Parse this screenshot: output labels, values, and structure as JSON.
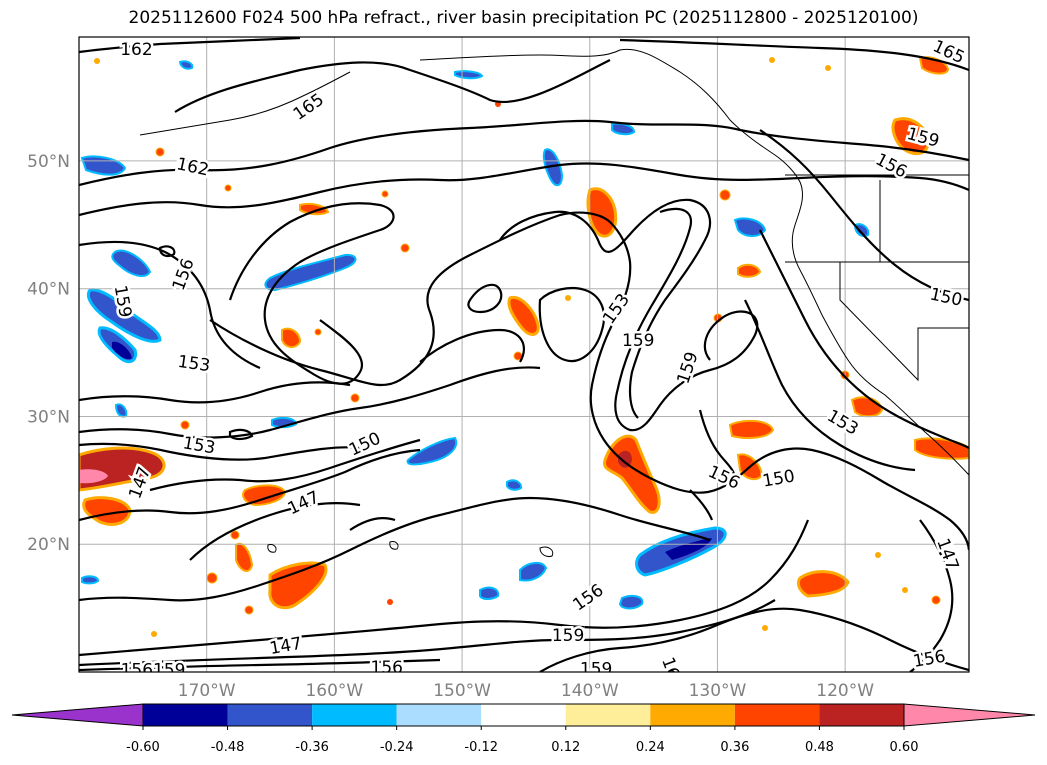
{
  "title": "2025112600 F024 500 hPa refract., river basin precipitation PC (2025112800 - 2025120100)",
  "map": {
    "lat_labels": [
      {
        "lat": 50,
        "text": "50°N"
      },
      {
        "lat": 40,
        "text": "40°N"
      },
      {
        "lat": 30,
        "text": "30°N"
      },
      {
        "lat": 20,
        "text": "20°N"
      }
    ],
    "lon_labels": [
      {
        "lon": -170,
        "text": "170°W"
      },
      {
        "lon": -160,
        "text": "160°W"
      },
      {
        "lon": -150,
        "text": "150°W"
      },
      {
        "lon": -140,
        "text": "140°W"
      },
      {
        "lon": -130,
        "text": "130°W"
      },
      {
        "lon": -120,
        "text": "120°W"
      }
    ],
    "extent": {
      "lon_min": -180,
      "lon_max": -110.3,
      "lat_min": 10,
      "lat_max": 59.7
    },
    "grid_lons": [
      -170,
      -160,
      -150,
      -140,
      -130,
      -120
    ],
    "grid_lats": [
      20,
      30,
      40,
      50
    ],
    "contour_labels": [
      {
        "text": "162",
        "lon": -175.5,
        "lat": 58.7,
        "rot": 0
      },
      {
        "text": "165",
        "lon": -162.0,
        "lat": 54.2,
        "rot": -35
      },
      {
        "text": "165",
        "lon": -111.9,
        "lat": 58.5,
        "rot": 25
      },
      {
        "text": "162",
        "lon": -171.1,
        "lat": 49.5,
        "rot": 12
      },
      {
        "text": "159",
        "lon": -113.9,
        "lat": 51.8,
        "rot": 15
      },
      {
        "text": "156",
        "lon": -116.4,
        "lat": 49.6,
        "rot": 28
      },
      {
        "text": "156",
        "lon": -171.8,
        "lat": 41.1,
        "rot": -70
      },
      {
        "text": "159",
        "lon": -176.6,
        "lat": 39.0,
        "rot": 80
      },
      {
        "text": "153",
        "lon": -171.0,
        "lat": 34.1,
        "rot": 8
      },
      {
        "text": "150",
        "lon": -112.1,
        "lat": 39.3,
        "rot": 12
      },
      {
        "text": "153",
        "lon": -137.9,
        "lat": 38.4,
        "rot": -55
      },
      {
        "text": "159",
        "lon": -136.2,
        "lat": 35.9,
        "rot": 0
      },
      {
        "text": "159",
        "lon": -132.3,
        "lat": 33.8,
        "rot": -72
      },
      {
        "text": "153",
        "lon": -120.2,
        "lat": 29.5,
        "rot": 30
      },
      {
        "text": "153",
        "lon": -170.6,
        "lat": 27.7,
        "rot": 10
      },
      {
        "text": "150",
        "lon": -157.6,
        "lat": 27.8,
        "rot": -25
      },
      {
        "text": "147",
        "lon": -175.2,
        "lat": 24.8,
        "rot": -70
      },
      {
        "text": "147",
        "lon": -162.4,
        "lat": 23.2,
        "rot": -25
      },
      {
        "text": "156",
        "lon": -129.5,
        "lat": 25.2,
        "rot": 25
      },
      {
        "text": "150",
        "lon": -125.2,
        "lat": 25.1,
        "rot": -10
      },
      {
        "text": "156",
        "lon": -140.1,
        "lat": 15.8,
        "rot": -35
      },
      {
        "text": "147",
        "lon": -112.0,
        "lat": 19.2,
        "rot": 70
      },
      {
        "text": "159",
        "lon": -141.7,
        "lat": 12.8,
        "rot": 0
      },
      {
        "text": "147",
        "lon": -163.8,
        "lat": 12.0,
        "rot": -10
      },
      {
        "text": "156",
        "lon": -155.9,
        "lat": 10.3,
        "rot": 0
      },
      {
        "text": "159",
        "lon": -139.5,
        "lat": 10.2,
        "rot": 0
      },
      {
        "text": "156",
        "lon": -113.4,
        "lat": 11.0,
        "rot": -10
      },
      {
        "text": "16",
        "lon": -133.7,
        "lat": 10.3,
        "rot": 70
      },
      {
        "text": "156159",
        "lon": -174.2,
        "lat": 10.1,
        "rot": 0
      }
    ]
  },
  "colorbar": {
    "ticks": [
      "-0.60",
      "-0.48",
      "-0.36",
      "-0.24",
      "-0.12",
      "0.12",
      "0.24",
      "0.36",
      "0.48",
      "0.60"
    ],
    "levels": [
      -0.6,
      -0.48,
      -0.36,
      -0.24,
      -0.12,
      0.12,
      0.24,
      0.36,
      0.48,
      0.6
    ],
    "colors": [
      "#9933cc",
      "#000099",
      "#3355cc",
      "#00bbff",
      "#aaddff",
      "#ffffff",
      "#ffee99",
      "#ffaa00",
      "#ff4400",
      "#bb2222",
      "#ff88aa"
    ]
  }
}
